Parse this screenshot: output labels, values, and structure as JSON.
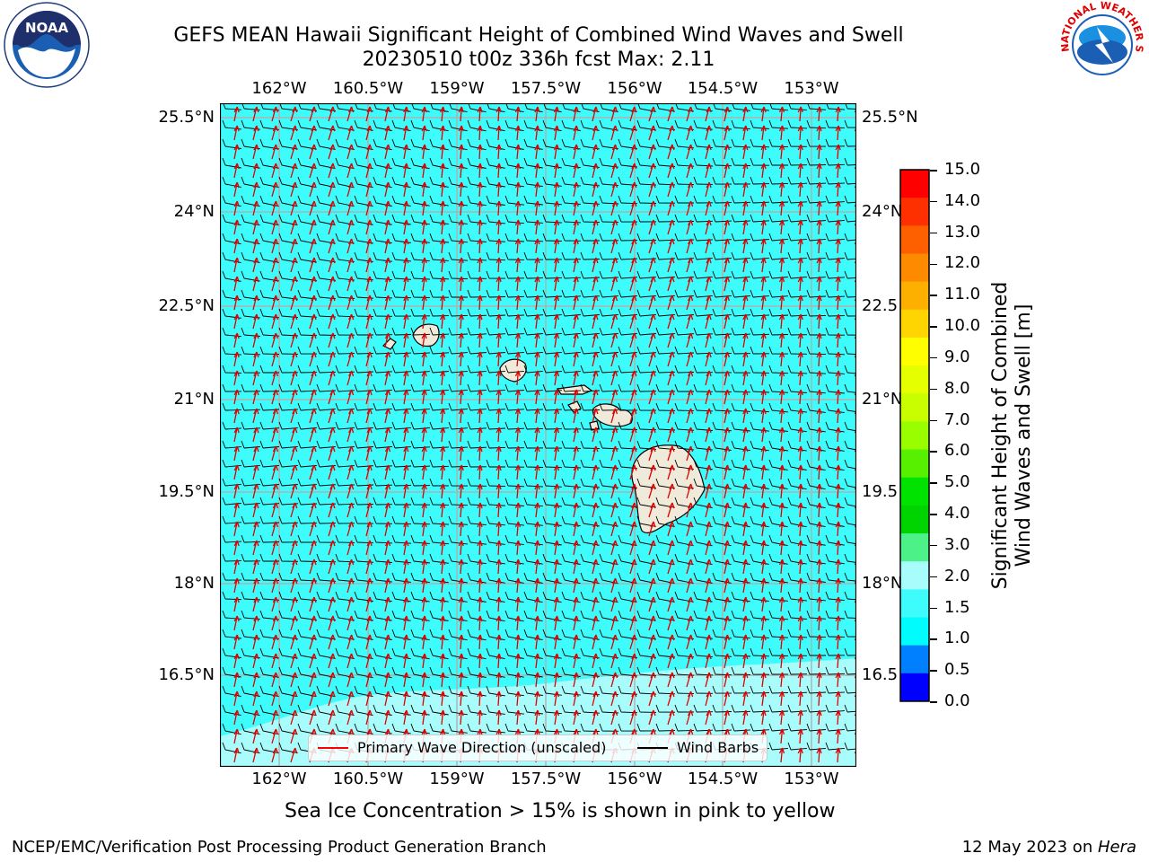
{
  "title": {
    "line1": "GEFS MEAN Hawaii Significant Height of Combined Wind Waves and Swell",
    "line2": "20230510 t00z 336h fcst   Max: 2.11"
  },
  "map": {
    "lon_labels": [
      "162°W",
      "160.5°W",
      "159°W",
      "157.5°W",
      "156°W",
      "154.5°W",
      "153°W"
    ],
    "lat_labels": [
      "25.5°N",
      "24°N",
      "22.5°N",
      "21°N",
      "19.5°N",
      "18°N",
      "16.5°N"
    ],
    "lat_labels_right": [
      "25.5°N",
      "24°N",
      "22.5",
      "21°N",
      "19.5",
      "18°N",
      "16.5"
    ],
    "ocean_color": "#3ffcfc",
    "swell_color": "#a8fcfc",
    "land_color": "#efeada"
  },
  "legend": {
    "primary_wave": "Primary Wave Direction (unscaled)",
    "wind_barbs": "Wind Barbs",
    "primary_wave_color": "#ff0000",
    "wind_barbs_color": "#000000"
  },
  "colorbar": {
    "ticks": [
      "15.0",
      "14.0",
      "13.0",
      "12.0",
      "11.0",
      "10.0",
      "9.0",
      "8.0",
      "7.0",
      "6.0",
      "5.0",
      "4.0",
      "3.0",
      "2.0",
      "1.5",
      "1.0",
      "0.5",
      "0.0"
    ],
    "colors": [
      "#fe0000",
      "#fe3000",
      "#fe6000",
      "#fe8a00",
      "#feb000",
      "#fed500",
      "#fefe00",
      "#e5fe00",
      "#c8fe00",
      "#99fe00",
      "#56f000",
      "#00e300",
      "#00d400",
      "#4cf287",
      "#a8fcfc",
      "#3ffcfc",
      "#00fcfc",
      "#0080ff",
      "#0000ff"
    ],
    "title_line1": "Significant Height of Combined",
    "title_line2": "Wind Waves and Swell [m]"
  },
  "subtitle": "Sea Ice Concentration > 15% is shown in pink to yellow",
  "footer": {
    "left": "NCEP/EMC/Verification Post Processing Product Generation Branch",
    "right_date": "12 May 2023 on ",
    "right_machine": "Hera"
  },
  "logos": {
    "noaa": "NOAA",
    "nws": "NATIONAL WEATHER SERVICE"
  }
}
